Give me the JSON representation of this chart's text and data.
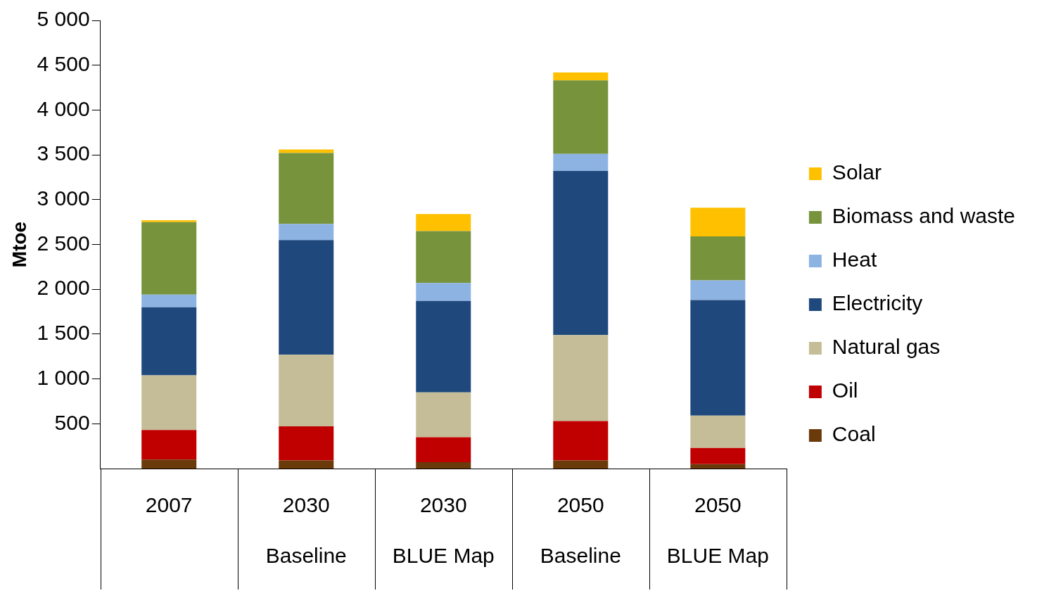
{
  "chart_data": {
    "type": "bar",
    "stacked": true,
    "ylabel": "Mtoe",
    "categories": [
      "2007",
      "2030 Baseline",
      "2030 BLUE Map",
      "2050 Baseline",
      "2050 BLUE Map"
    ],
    "series": [
      {
        "name": "Coal",
        "color": "#6b3a0a",
        "values": [
          100,
          90,
          70,
          90,
          50
        ]
      },
      {
        "name": "Oil",
        "color": "#c00000",
        "values": [
          330,
          380,
          280,
          440,
          180
        ]
      },
      {
        "name": "Natural gas",
        "color": "#c4bd97",
        "values": [
          610,
          800,
          500,
          960,
          360
        ]
      },
      {
        "name": "Electricity",
        "color": "#1f497d",
        "values": [
          760,
          1280,
          1020,
          1830,
          1290
        ]
      },
      {
        "name": "Heat",
        "color": "#8db3e2",
        "values": [
          140,
          180,
          200,
          190,
          220
        ]
      },
      {
        "name": "Biomass and waste",
        "color": "#77933c",
        "values": [
          810,
          790,
          580,
          820,
          490
        ]
      },
      {
        "name": "Solar",
        "color": "#ffc000",
        "values": [
          20,
          40,
          190,
          90,
          320
        ]
      }
    ],
    "ylim": [
      0,
      5000
    ],
    "yticks": [
      {
        "value": 500,
        "label": "500"
      },
      {
        "value": 1000,
        "label": "1 000"
      },
      {
        "value": 1500,
        "label": "1 500"
      },
      {
        "value": 2000,
        "label": "2 000"
      },
      {
        "value": 2500,
        "label": "2 500"
      },
      {
        "value": 3000,
        "label": "3 000"
      },
      {
        "value": 3500,
        "label": "3 500"
      },
      {
        "value": 4000,
        "label": "4 000"
      },
      {
        "value": 4500,
        "label": "4 500"
      },
      {
        "value": 5000,
        "label": "5 000"
      }
    ],
    "grid": false,
    "legend": "right"
  }
}
